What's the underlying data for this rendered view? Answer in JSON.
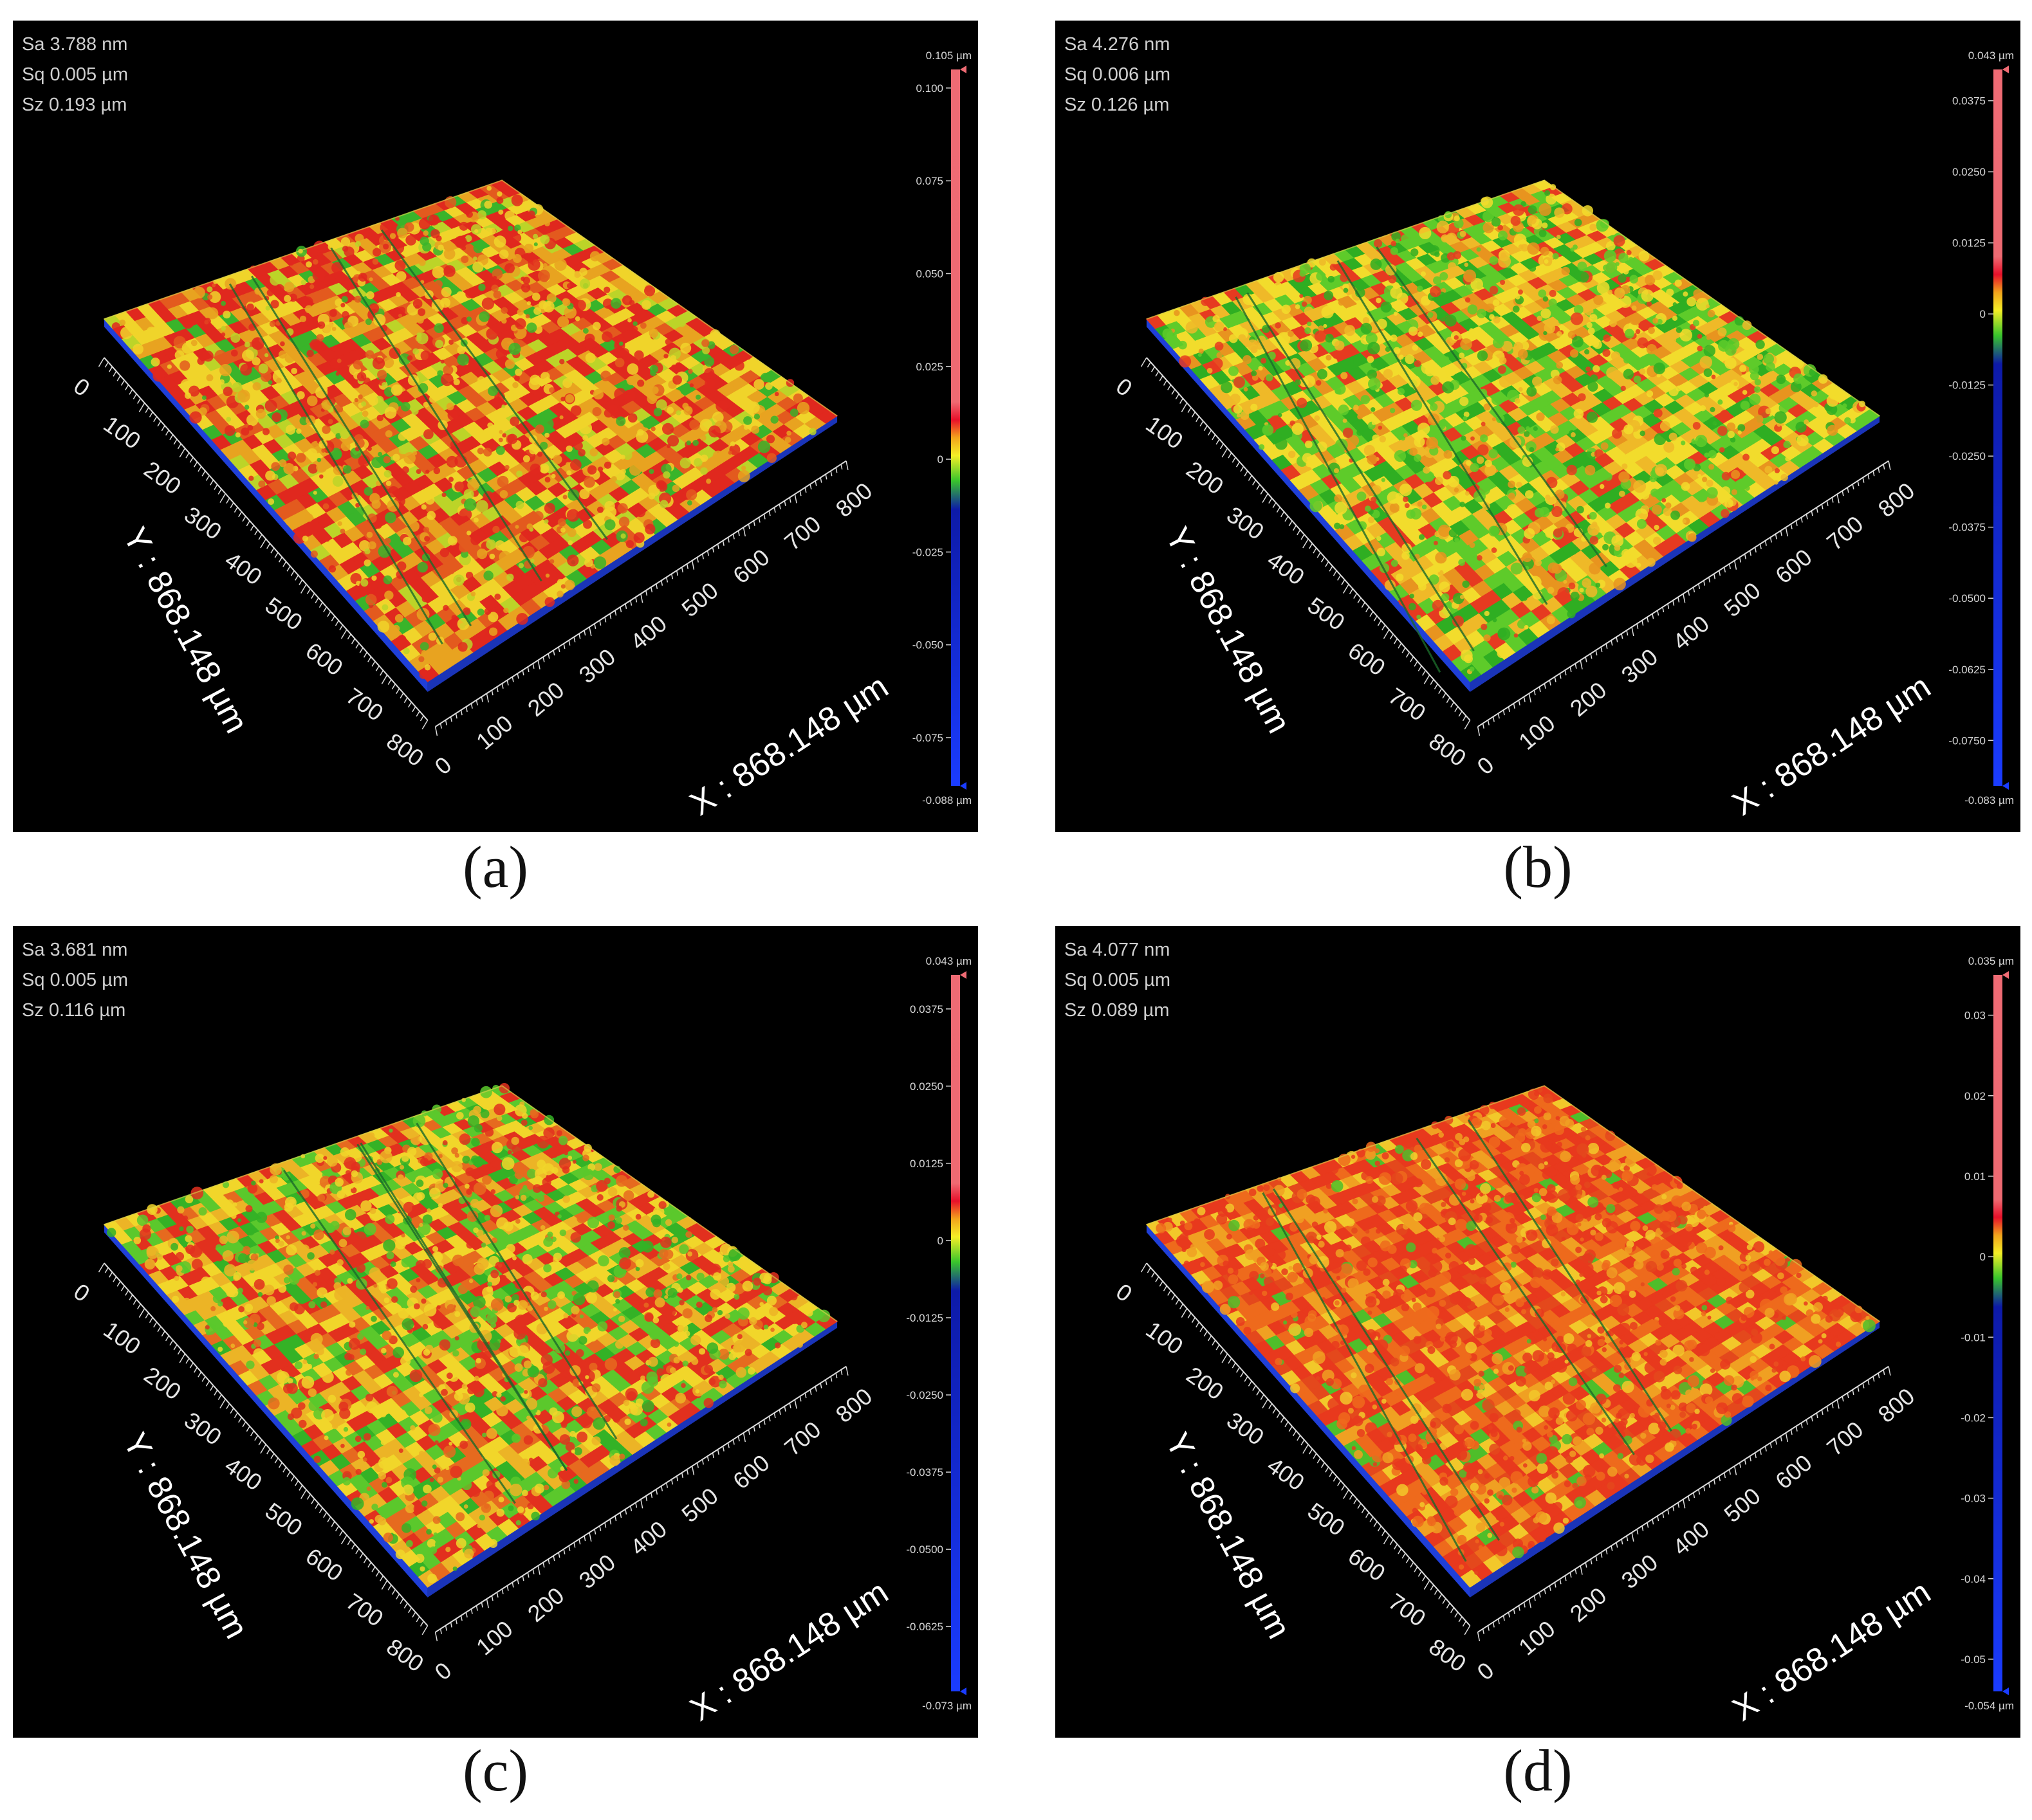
{
  "colors": {
    "background": "#000000",
    "surface_low": "#2a7a18",
    "surface_mid": "#e4c92a",
    "surface_high": "#e53b1f",
    "scale": [
      "#ef6b74",
      "#e8102a",
      "#f2a41c",
      "#f4ef26",
      "#39c42c",
      "#0d1aa8",
      "#1a3cff"
    ]
  },
  "panels": [
    {
      "caption": "(a)",
      "stats": {
        "sa": "Sa 3.788 nm",
        "sq": "Sq 0.005 µm",
        "sz": "Sz 0.193 µm"
      },
      "colorbar": {
        "top_label": "0.105 µm",
        "bottom_label": "-0.088 µm",
        "max": 0.105,
        "min": -0.088,
        "ticks": [
          {
            "value": 0.1,
            "label": "0.100"
          },
          {
            "value": 0.075,
            "label": "0.075"
          },
          {
            "value": 0.05,
            "label": "0.050"
          },
          {
            "value": 0.025,
            "label": "0.025"
          },
          {
            "value": 0,
            "label": "0"
          },
          {
            "value": -0.025,
            "label": "-0.025"
          },
          {
            "value": -0.05,
            "label": "-0.050"
          },
          {
            "value": -0.075,
            "label": "-0.075"
          }
        ]
      },
      "y_axis": {
        "title": "Y : 868.148 µm",
        "ticks": [
          "0",
          "100",
          "200",
          "300",
          "400",
          "500",
          "600",
          "700",
          "800"
        ]
      },
      "x_axis": {
        "title": "X : 868.148 µm",
        "ticks": [
          "0",
          "100",
          "200",
          "300",
          "400",
          "500",
          "600",
          "700",
          "800"
        ]
      }
    },
    {
      "caption": "(b)",
      "stats": {
        "sa": "Sa 4.276 nm",
        "sq": "Sq 0.006 µm",
        "sz": "Sz 0.126 µm"
      },
      "colorbar": {
        "top_label": "0.043 µm",
        "bottom_label": "-0.083 µm",
        "max": 0.043,
        "min": -0.083,
        "ticks": [
          {
            "value": 0.0375,
            "label": "0.0375"
          },
          {
            "value": 0.025,
            "label": "0.0250"
          },
          {
            "value": 0.0125,
            "label": "0.0125"
          },
          {
            "value": 0,
            "label": "0"
          },
          {
            "value": -0.0125,
            "label": "-0.0125"
          },
          {
            "value": -0.025,
            "label": "-0.0250"
          },
          {
            "value": -0.0375,
            "label": "-0.0375"
          },
          {
            "value": -0.05,
            "label": "-0.0500"
          },
          {
            "value": -0.0625,
            "label": "-0.0625"
          },
          {
            "value": -0.075,
            "label": "-0.0750"
          }
        ]
      },
      "y_axis": {
        "title": "Y : 868.148 µm",
        "ticks": [
          "0",
          "100",
          "200",
          "300",
          "400",
          "500",
          "600",
          "700",
          "800"
        ]
      },
      "x_axis": {
        "title": "X : 868.148 µm",
        "ticks": [
          "0",
          "100",
          "200",
          "300",
          "400",
          "500",
          "600",
          "700",
          "800"
        ]
      }
    },
    {
      "caption": "(c)",
      "stats": {
        "sa": "Sa 3.681 nm",
        "sq": "Sq 0.005 µm",
        "sz": "Sz 0.116  µm"
      },
      "colorbar": {
        "top_label": "0.043 µm",
        "bottom_label": "-0.073 µm",
        "max": 0.043,
        "min": -0.073,
        "ticks": [
          {
            "value": 0.0375,
            "label": "0.0375"
          },
          {
            "value": 0.025,
            "label": "0.0250"
          },
          {
            "value": 0.0125,
            "label": "0.0125"
          },
          {
            "value": 0,
            "label": "0"
          },
          {
            "value": -0.0125,
            "label": "-0.0125"
          },
          {
            "value": -0.025,
            "label": "-0.0250"
          },
          {
            "value": -0.0375,
            "label": "-0.0375"
          },
          {
            "value": -0.05,
            "label": "-0.0500"
          },
          {
            "value": -0.0625,
            "label": "-0.0625"
          }
        ]
      },
      "y_axis": {
        "title": "Y : 868.148 µm",
        "ticks": [
          "0",
          "100",
          "200",
          "300",
          "400",
          "500",
          "600",
          "700",
          "800"
        ]
      },
      "x_axis": {
        "title": "X : 868.148 µm",
        "ticks": [
          "0",
          "100",
          "200",
          "300",
          "400",
          "500",
          "600",
          "700",
          "800"
        ]
      }
    },
    {
      "caption": "(d)",
      "stats": {
        "sa": "Sa 4.077 nm",
        "sq": "Sq 0.005 µm",
        "sz": "Sz 0.089  µm"
      },
      "colorbar": {
        "top_label": "0.035 µm",
        "bottom_label": "-0.054 µm",
        "max": 0.035,
        "min": -0.054,
        "ticks": [
          {
            "value": 0.03,
            "label": "0.03"
          },
          {
            "value": 0.02,
            "label": "0.02"
          },
          {
            "value": 0.01,
            "label": "0.01"
          },
          {
            "value": 0,
            "label": "0"
          },
          {
            "value": -0.01,
            "label": "-0.01"
          },
          {
            "value": -0.02,
            "label": "-0.02"
          },
          {
            "value": -0.03,
            "label": "-0.03"
          },
          {
            "value": -0.04,
            "label": "-0.04"
          },
          {
            "value": -0.05,
            "label": "-0.05"
          }
        ]
      },
      "y_axis": {
        "title": "Y : 868.148 µm",
        "ticks": [
          "0",
          "100",
          "200",
          "300",
          "400",
          "500",
          "600",
          "700",
          "800"
        ]
      },
      "x_axis": {
        "title": "X : 868.148 µm",
        "ticks": [
          "0",
          "100",
          "200",
          "300",
          "400",
          "500",
          "600",
          "700",
          "800"
        ]
      }
    }
  ]
}
